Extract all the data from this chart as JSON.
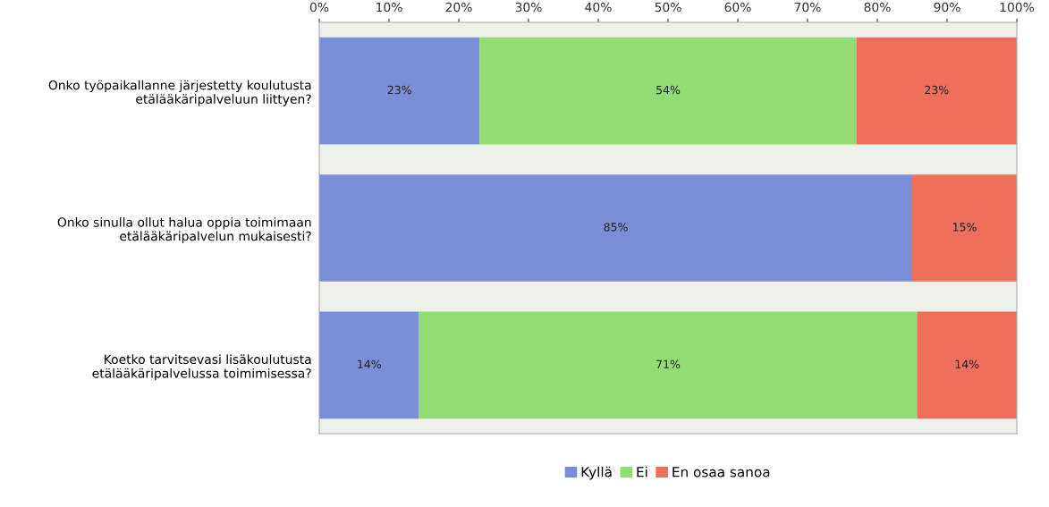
{
  "chart_data": {
    "type": "bar",
    "orientation": "horizontal",
    "stacked": true,
    "categories": [
      "Onko työpaikallanne järjestetty koulutusta etälääkäripalveluun liittyen?",
      "Onko sinulla ollut halua oppia toimimaan etälääkäripalvelun mukaisesti?",
      "Koetko tarvitsevasi lisäkoulutusta etälääkäripalvelussa toimimisessa?"
    ],
    "series": [
      {
        "name": "Kyllä",
        "color": "#7b8ed8",
        "values": [
          23,
          85,
          14.3
        ],
        "value_labels": [
          "23%",
          "85%",
          "14%"
        ]
      },
      {
        "name": "Ei",
        "color": "#93dc74",
        "values": [
          54,
          0,
          71.4
        ],
        "value_labels": [
          "54%",
          null,
          "71%"
        ]
      },
      {
        "name": "En osaa sanoa",
        "color": "#ee6f5c",
        "values": [
          23,
          15,
          14.3
        ],
        "value_labels": [
          "23%",
          "15%",
          "14%"
        ]
      }
    ],
    "xlim": [
      0,
      100
    ],
    "xticks": [
      {
        "value": 0,
        "label": "0%"
      },
      {
        "value": 10,
        "label": "10%"
      },
      {
        "value": 20,
        "label": "20%"
      },
      {
        "value": 30,
        "label": "30%"
      },
      {
        "value": 40,
        "label": "40%"
      },
      {
        "value": 50,
        "label": "50%"
      },
      {
        "value": 60,
        "label": "60%"
      },
      {
        "value": 70,
        "label": "70%"
      },
      {
        "value": 80,
        "label": "80%"
      },
      {
        "value": 90,
        "label": "90%"
      },
      {
        "value": 100,
        "label": "100%"
      }
    ],
    "legend": "bottom",
    "grid": false
  }
}
